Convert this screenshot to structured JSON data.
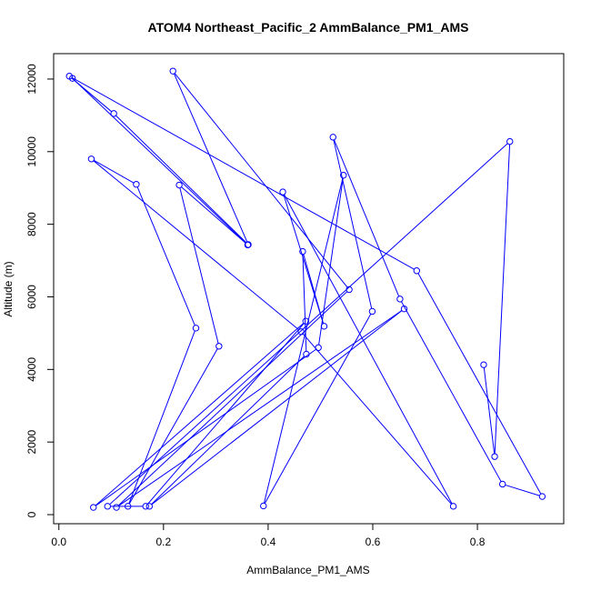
{
  "chart_data": {
    "type": "line",
    "title": "ATOM4 Northeast_Pacific_2 AmmBalance_PM1_AMS",
    "xlabel": "AmmBalance_PM1_AMS",
    "ylabel": "Altitude (m)",
    "xlim": [
      -0.01,
      0.965
    ],
    "ylim": [
      -250,
      12700
    ],
    "x_ticks": [
      0.0,
      0.2,
      0.4,
      0.6,
      0.8
    ],
    "x_tick_labels": [
      "0.0",
      "0.2",
      "0.4",
      "0.6",
      "0.8"
    ],
    "y_ticks": [
      0,
      2000,
      4000,
      6000,
      8000,
      10000,
      12000
    ],
    "y_tick_labels": [
      "0",
      "2000",
      "4000",
      "6000",
      "8000",
      "10000",
      "12000"
    ],
    "series_color": "#0000ff",
    "markers": "open-circle",
    "grid": false,
    "legend": "none",
    "points": [
      {
        "x": 0.812,
        "y": 4130
      },
      {
        "x": 0.833,
        "y": 1600
      },
      {
        "x": 0.862,
        "y": 10280
      },
      {
        "x": 0.093,
        "y": 230
      },
      {
        "x": 0.166,
        "y": 230
      },
      {
        "x": 0.472,
        "y": 5330
      },
      {
        "x": 0.066,
        "y": 200
      },
      {
        "x": 0.496,
        "y": 4600
      },
      {
        "x": 0.544,
        "y": 9350
      },
      {
        "x": 0.391,
        "y": 240
      },
      {
        "x": 0.599,
        "y": 5600
      },
      {
        "x": 0.524,
        "y": 10400
      },
      {
        "x": 0.652,
        "y": 5940
      },
      {
        "x": 0.848,
        "y": 840
      },
      {
        "x": 0.924,
        "y": 500
      },
      {
        "x": 0.684,
        "y": 6720
      },
      {
        "x": 0.02,
        "y": 12080
      },
      {
        "x": 0.105,
        "y": 11050
      },
      {
        "x": 0.362,
        "y": 7440
      },
      {
        "x": 0.218,
        "y": 12220
      },
      {
        "x": 0.555,
        "y": 6200
      },
      {
        "x": 0.11,
        "y": 200
      },
      {
        "x": 0.66,
        "y": 5670
      },
      {
        "x": 0.173,
        "y": 230
      },
      {
        "x": 0.473,
        "y": 4420
      },
      {
        "x": 0.466,
        "y": 7250
      },
      {
        "x": 0.507,
        "y": 5190
      },
      {
        "x": 0.428,
        "y": 8890
      },
      {
        "x": 0.754,
        "y": 230
      },
      {
        "x": 0.463,
        "y": 5040
      },
      {
        "x": 0.062,
        "y": 9800
      },
      {
        "x": 0.148,
        "y": 9100
      },
      {
        "x": 0.262,
        "y": 5140
      },
      {
        "x": 0.132,
        "y": 230
      },
      {
        "x": 0.306,
        "y": 4640
      },
      {
        "x": 0.23,
        "y": 9080
      },
      {
        "x": 0.361,
        "y": 7430
      },
      {
        "x": 0.026,
        "y": 12020
      }
    ]
  }
}
